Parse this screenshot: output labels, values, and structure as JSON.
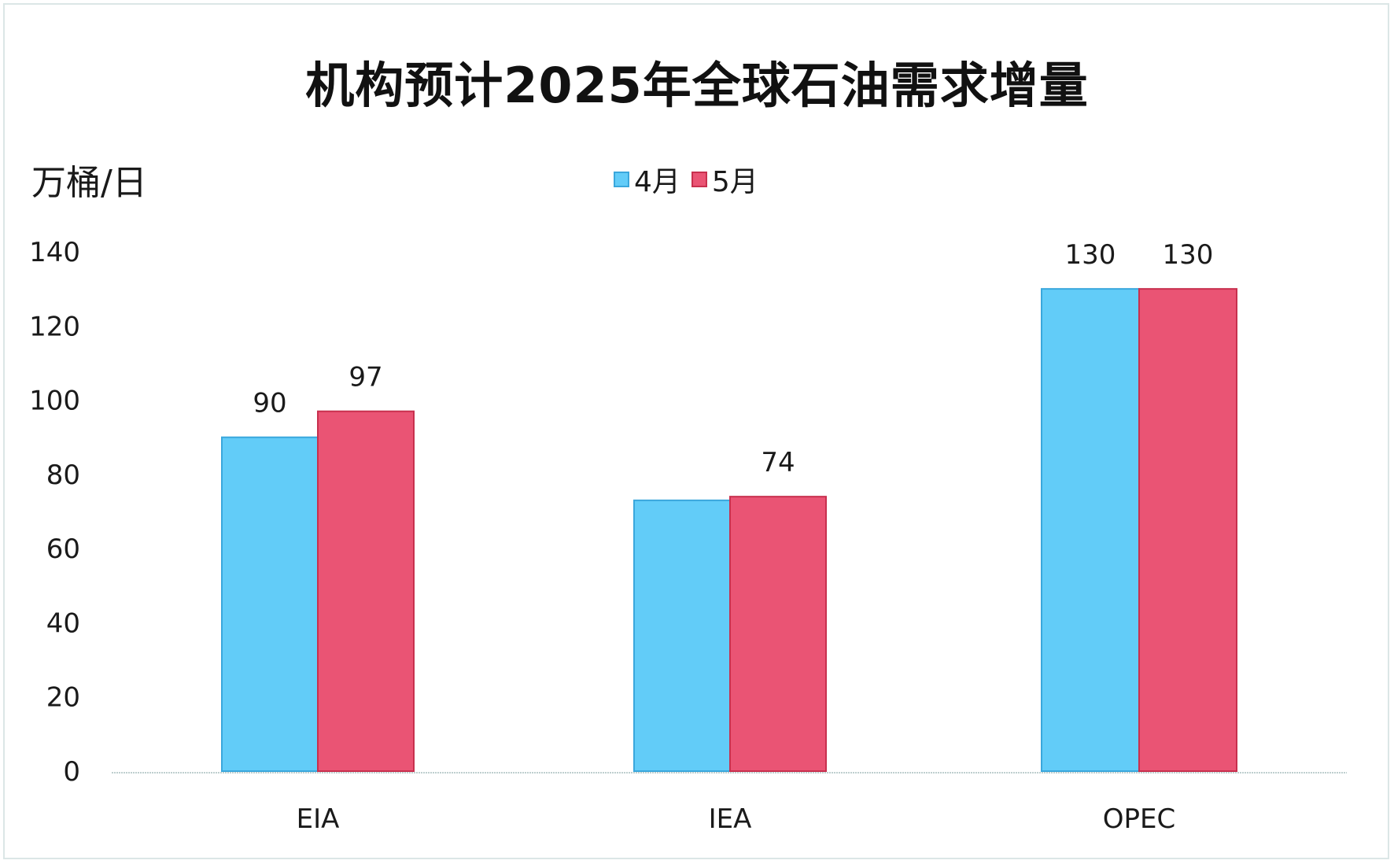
{
  "chart_data": {
    "type": "bar",
    "title": "机构预计2025年全球石油需求增量",
    "ylabel": "万桶/日",
    "categories": [
      "EIA",
      "IEA",
      "OPEC"
    ],
    "series": [
      {
        "name": "4月",
        "values": [
          90,
          73,
          130
        ],
        "labels": [
          "90",
          "",
          "130"
        ],
        "color": "#62ccf8",
        "stroke": "#3aa7dc"
      },
      {
        "name": "5月",
        "values": [
          97,
          74,
          130
        ],
        "labels": [
          "97",
          "74",
          "130"
        ],
        "color": "#ea5474",
        "stroke": "#c8304e"
      }
    ],
    "yticks": [
      "0",
      "20",
      "40",
      "60",
      "80",
      "100",
      "120",
      "140"
    ],
    "ylim": [
      0,
      140
    ],
    "grid": false,
    "legend_position": "top-center"
  }
}
